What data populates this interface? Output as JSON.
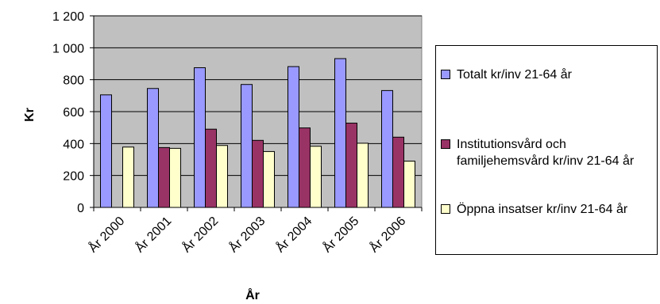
{
  "chart_data": {
    "type": "bar",
    "categories": [
      "År 2000",
      "År 2001",
      "År 2002",
      "År 2003",
      "År 2004",
      "År 2005",
      "År 2006"
    ],
    "series": [
      {
        "name": "Totalt kr/inv 21-64 år",
        "color": "#9999ff",
        "values": [
          705,
          745,
          875,
          770,
          882,
          932,
          732
        ]
      },
      {
        "name": "Institutionsvård och familjehemsvård kr/inv 21-64 år",
        "color": "#993366",
        "values": [
          null,
          375,
          490,
          420,
          498,
          528,
          440
        ]
      },
      {
        "name": "Öppna insatser kr/inv 21-64 år",
        "color": "#ffffcc",
        "values": [
          378,
          370,
          388,
          350,
          383,
          402,
          290
        ]
      }
    ],
    "xlabel": "År",
    "ylabel": "Kr",
    "ylim": [
      0,
      1200
    ],
    "yticks": [
      0,
      200,
      400,
      600,
      800,
      1000,
      1200
    ],
    "ytick_labels": [
      "0",
      "200",
      "400",
      "600",
      "800",
      "1 000",
      "1 200"
    ],
    "plot_background": "#c0c0c0",
    "grid": true,
    "legend_position": "right"
  }
}
